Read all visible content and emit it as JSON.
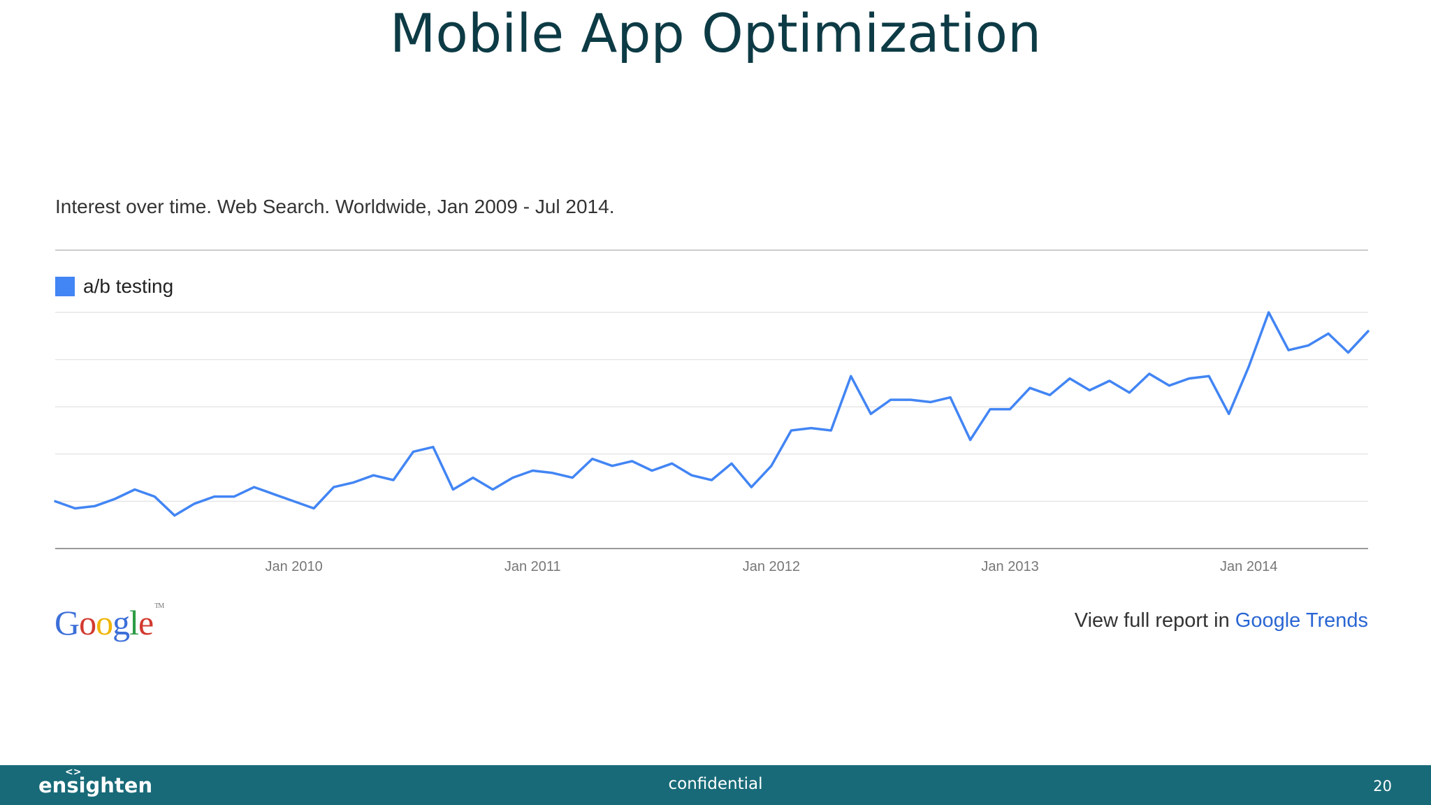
{
  "slide": {
    "title": "Mobile App Optimization",
    "footer_center": "confidential",
    "footer_page": "20",
    "brand": "ensighten",
    "brand_mark": "<>"
  },
  "chart_header": {
    "subtitle": "Interest over time. Web Search. Worldwide, Jan 2009 - Jul 2014."
  },
  "legend": {
    "label": "a/b testing",
    "color": "#4285f4"
  },
  "footer_links": {
    "prefix": "View full report in ",
    "link": "Google Trends",
    "logo_tm": "TM"
  },
  "logo_letters": [
    {
      "ch": "G",
      "color": "#3c6fd8"
    },
    {
      "ch": "o",
      "color": "#d23a2f"
    },
    {
      "ch": "o",
      "color": "#f0b400"
    },
    {
      "ch": "g",
      "color": "#3c6fd8"
    },
    {
      "ch": "l",
      "color": "#2b9b44"
    },
    {
      "ch": "e",
      "color": "#d23a2f"
    }
  ],
  "chart_data": {
    "type": "line",
    "title": "Interest over time. Web Search. Worldwide, Jan 2009 - Jul 2014.",
    "xlabel": "",
    "ylabel": "",
    "ylim": [
      0,
      100
    ],
    "grid": true,
    "legend": "top-left",
    "x_start": "2009-01",
    "x_end": "2014-07",
    "x_ticks": [
      "Jan 2010",
      "Jan 2011",
      "Jan 2012",
      "Jan 2013",
      "Jan 2014"
    ],
    "series": [
      {
        "name": "a/b testing",
        "color": "#4285f4",
        "x": [
          "2009-01",
          "2009-02",
          "2009-03",
          "2009-04",
          "2009-05",
          "2009-06",
          "2009-07",
          "2009-08",
          "2009-09",
          "2009-10",
          "2009-11",
          "2009-12",
          "2010-01",
          "2010-02",
          "2010-03",
          "2010-04",
          "2010-05",
          "2010-06",
          "2010-07",
          "2010-08",
          "2010-09",
          "2010-10",
          "2010-11",
          "2010-12",
          "2011-01",
          "2011-02",
          "2011-03",
          "2011-04",
          "2011-05",
          "2011-06",
          "2011-07",
          "2011-08",
          "2011-09",
          "2011-10",
          "2011-11",
          "2011-12",
          "2012-01",
          "2012-02",
          "2012-03",
          "2012-04",
          "2012-05",
          "2012-06",
          "2012-07",
          "2012-08",
          "2012-09",
          "2012-10",
          "2012-11",
          "2012-12",
          "2013-01",
          "2013-02",
          "2013-03",
          "2013-04",
          "2013-05",
          "2013-06",
          "2013-07",
          "2013-08",
          "2013-09",
          "2013-10",
          "2013-11",
          "2013-12",
          "2014-01",
          "2014-02",
          "2014-03",
          "2014-04",
          "2014-05",
          "2014-06",
          "2014-07"
        ],
        "values": [
          20,
          17,
          18,
          21,
          25,
          22,
          14,
          19,
          22,
          22,
          26,
          23,
          20,
          17,
          26,
          28,
          31,
          29,
          41,
          43,
          25,
          30,
          25,
          30,
          33,
          32,
          30,
          38,
          35,
          37,
          33,
          36,
          31,
          29,
          36,
          26,
          35,
          50,
          51,
          50,
          73,
          57,
          63,
          63,
          62,
          64,
          46,
          59,
          59,
          68,
          65,
          72,
          67,
          71,
          66,
          74,
          69,
          72,
          73,
          57,
          77,
          100,
          84,
          86,
          91,
          83,
          92
        ]
      }
    ]
  }
}
